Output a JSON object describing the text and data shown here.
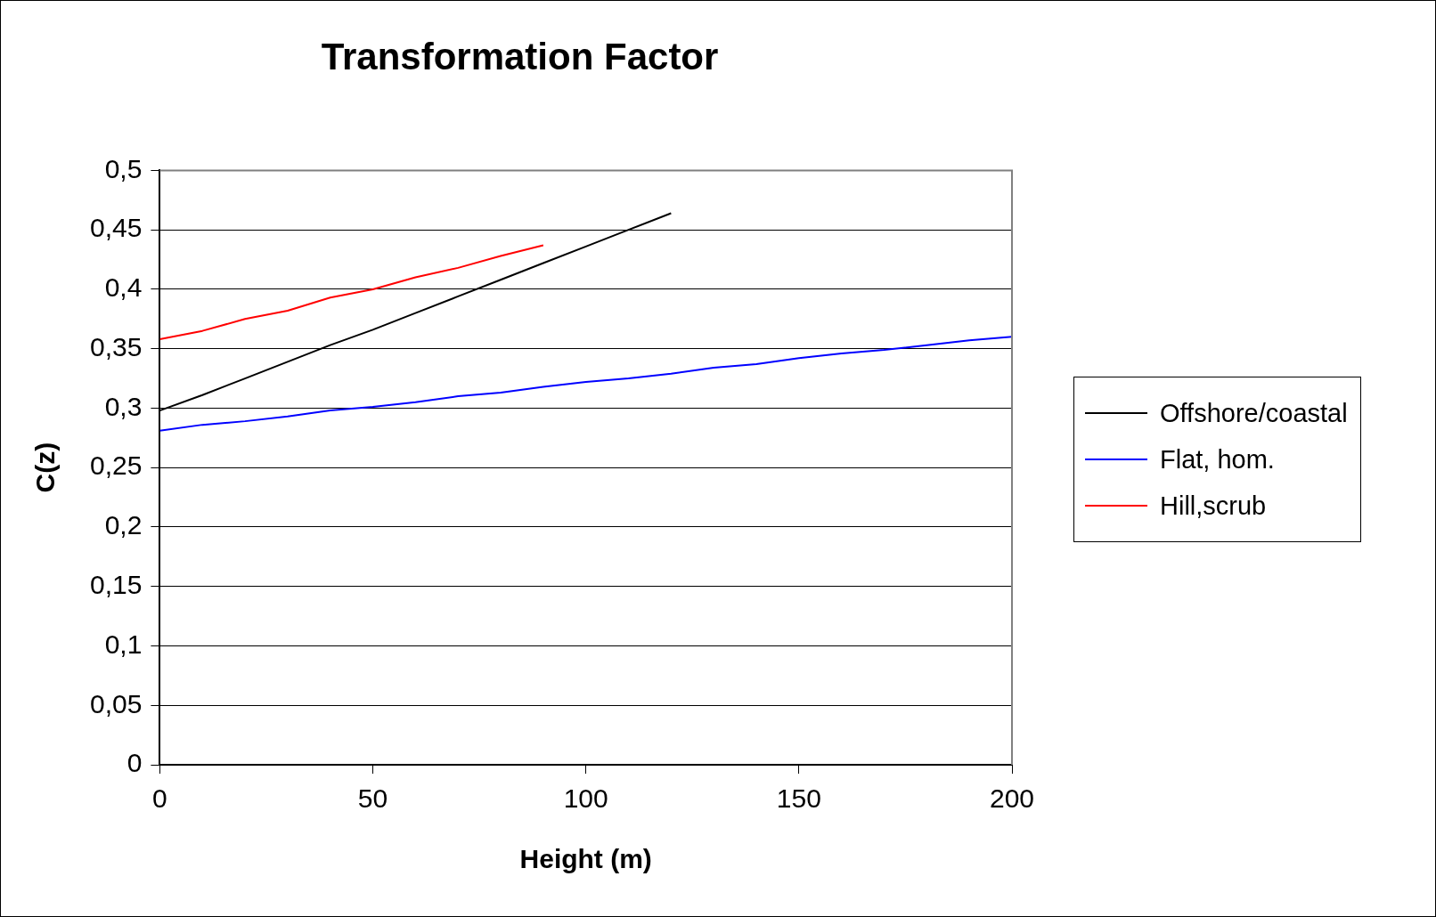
{
  "chart_data": {
    "type": "line",
    "title": "Transformation Factor",
    "xlabel": "Height (m)",
    "ylabel": "C(z)",
    "series": [
      {
        "name": "Offshore/coastal",
        "color": "#000000",
        "x": [
          0,
          10,
          20,
          30,
          40,
          50,
          60,
          70,
          80,
          90,
          100,
          110,
          120
        ],
        "values": [
          0.298,
          0.311,
          0.325,
          0.339,
          0.353,
          0.366,
          0.38,
          0.394,
          0.408,
          0.422,
          0.436,
          0.45,
          0.464
        ]
      },
      {
        "name": "Flat, hom.",
        "color": "#0000ff",
        "x": [
          0,
          10,
          20,
          30,
          40,
          50,
          60,
          70,
          80,
          90,
          100,
          110,
          120,
          130,
          140,
          150,
          160,
          170,
          180,
          190,
          200
        ],
        "values": [
          0.281,
          0.286,
          0.289,
          0.293,
          0.298,
          0.301,
          0.305,
          0.31,
          0.313,
          0.318,
          0.322,
          0.325,
          0.329,
          0.334,
          0.337,
          0.342,
          0.346,
          0.349,
          0.353,
          0.357,
          0.36
        ]
      },
      {
        "name": "Hill,scrub",
        "color": "#ff0000",
        "x": [
          0,
          10,
          20,
          30,
          40,
          50,
          60,
          70,
          80,
          90
        ],
        "values": [
          0.358,
          0.365,
          0.375,
          0.382,
          0.393,
          0.4,
          0.41,
          0.418,
          0.428,
          0.437
        ]
      }
    ],
    "xlim": [
      0,
      200
    ],
    "xticks": [
      0,
      50,
      100,
      150,
      200
    ],
    "ylim": [
      0,
      0.5
    ],
    "yticks": [
      {
        "value": 0,
        "label": "0"
      },
      {
        "value": 0.05,
        "label": "0,05"
      },
      {
        "value": 0.1,
        "label": "0,1"
      },
      {
        "value": 0.15,
        "label": "0,15"
      },
      {
        "value": 0.2,
        "label": "0,2"
      },
      {
        "value": 0.25,
        "label": "0,25"
      },
      {
        "value": 0.3,
        "label": "0,3"
      },
      {
        "value": 0.35,
        "label": "0,35"
      },
      {
        "value": 0.4,
        "label": "0,4"
      },
      {
        "value": 0.45,
        "label": "0,45"
      },
      {
        "value": 0.5,
        "label": "0,5"
      }
    ],
    "grid": "y",
    "legend": "right",
    "marker": "none",
    "line_style": "solid"
  }
}
